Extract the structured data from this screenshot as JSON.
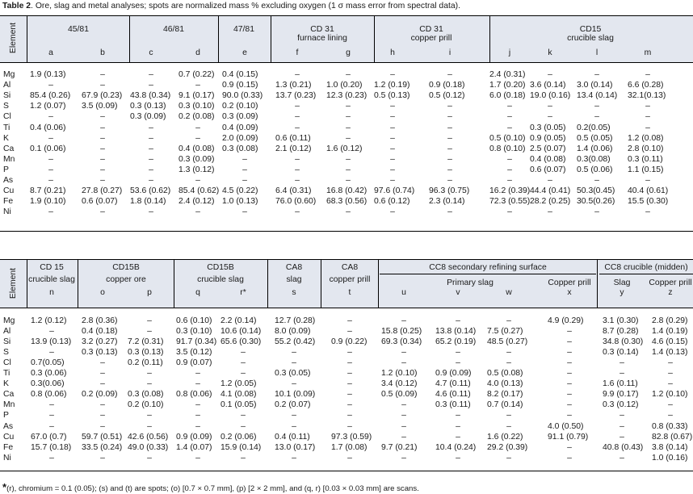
{
  "caption": {
    "label": "Table 2",
    "text": ". Ore, slag and metal analyses; spots are normalized mass % excluding oxygen (1 σ mass error from spectral data)."
  },
  "element_header": "Element",
  "elements": [
    "Mg",
    "Al",
    "Si",
    "S",
    "Cl",
    "Ti",
    "K",
    "Ca",
    "Mn",
    "P",
    "As",
    "Cu",
    "Fe",
    "Ni"
  ],
  "table1": {
    "groups": [
      {
        "top": "",
        "name": "45/81"
      },
      {
        "top": "",
        "name": "46/81"
      },
      {
        "top": "",
        "name": "47/81"
      },
      {
        "top": "CD 31",
        "name": "furnace lining"
      },
      {
        "top": "CD 31",
        "name": "copper prill"
      },
      {
        "top": "CD15",
        "name": "crucible slag"
      }
    ],
    "columns": [
      "a",
      "b",
      "c",
      "d",
      "e",
      "f",
      "g",
      "h",
      "i",
      "j",
      "k",
      "l",
      "m"
    ],
    "rows": [
      [
        "1.9 (0.13)",
        "–",
        "–",
        "0.7 (0.22)",
        "0.4 (0.15)",
        "–",
        "–",
        "–",
        "–",
        "2.4 (0.31)",
        "–",
        "–",
        "–"
      ],
      [
        "–",
        "–",
        "–",
        "–",
        "0.9 (0.15)",
        "1.3 (0.21)",
        "1.0 (0.20)",
        "1.2 (0.19)",
        "0.9 (0.18)",
        "1.7 (0.20)",
        "3.6 (0.14)",
        "3.0 (0.14)",
        "6.6 (0.28)"
      ],
      [
        "85.4 (0.26)",
        "67.9 (0.23)",
        "43.8 (0.34)",
        "9.1 (0.17)",
        "90.0 (0.33)",
        "13.7 (0.23)",
        "12.3 (0.23)",
        "0.5 (0.13)",
        "0.5 (0.12)",
        "6.0 (0.18)",
        "19.0 (0.16)",
        "13.4 (0.14)",
        "32.1(0.13)"
      ],
      [
        "1.2 (0.07)",
        "3.5 (0.09)",
        "0.3 (0.13)",
        "0.3 (0.10)",
        "0.2 (0.10)",
        "–",
        "–",
        "–",
        "–",
        "–",
        "–",
        "–",
        "–"
      ],
      [
        "–",
        "–",
        "0.3 (0.09)",
        "0.2 (0.08)",
        "0.3 (0.09)",
        "–",
        "–",
        "–",
        "–",
        "–",
        "–",
        "–",
        "–"
      ],
      [
        "0.4 (0.06)",
        "–",
        "–",
        "–",
        "0.4 (0.09)",
        "–",
        "–",
        "–",
        "–",
        "–",
        "0.3 (0.05)",
        "0.2(0.05)",
        "–"
      ],
      [
        "–",
        "–",
        "–",
        "–",
        "2.0 (0.09)",
        "0.6 (0.11)",
        "–",
        "–",
        "–",
        "0.5 (0.10)",
        "0.9 (0.05)",
        "0.5 (0.05)",
        "1.2 (0.08)"
      ],
      [
        "0.1 (0.06)",
        "–",
        "–",
        "0.4 (0.08)",
        "0.3 (0.08)",
        "2.1 (0.12)",
        "1.6 (0.12)",
        "–",
        "–",
        "0.8 (0.10)",
        "2.5 (0.07)",
        "1.4 (0.06)",
        "2.8 (0.10)"
      ],
      [
        "–",
        "–",
        "–",
        "0.3 (0.09)",
        "–",
        "–",
        "–",
        "–",
        "–",
        "–",
        "0.4 (0.08)",
        "0.3(0.08)",
        "0.3 (0.11)"
      ],
      [
        "–",
        "–",
        "–",
        "1.3 (0.12)",
        "–",
        "–",
        "–",
        "–",
        "–",
        "–",
        "0.6 (0.07)",
        "0.5 (0.06)",
        "1.1 (0.15)"
      ],
      [
        "–",
        "–",
        "–",
        "–",
        "–",
        "–",
        "–",
        "–",
        "–",
        "–",
        "–",
        "–",
        "–"
      ],
      [
        "8.7 (0.21)",
        "27.8 (0.27)",
        "53.6 (0.62)",
        "85.4 (0.62)",
        "4.5 (0.22)",
        "6.4 (0.31)",
        "16.8 (0.42)",
        "97.6 (0.74)",
        "96.3 (0.75)",
        "16.2 (0.39)",
        "44.4 (0.41)",
        "50.3(0.45)",
        "40.4 (0.61)"
      ],
      [
        "1.9 (0.10)",
        "0.6 (0.07)",
        "1.8 (0.14)",
        "2.4 (0.12)",
        "1.0 (0.13)",
        "76.0 (0.60)",
        "68.3 (0.56)",
        "0.6 (0.12)",
        "2.3 (0.14)",
        "72.3 (0.55)",
        "28.2 (0.25)",
        "30.5(0.26)",
        "15.5 (0.30)"
      ],
      [
        "–",
        "–",
        "–",
        "–",
        "–",
        "–",
        "–",
        "–",
        "–",
        "–",
        "–",
        "–",
        "–"
      ]
    ]
  },
  "table2": {
    "groups": [
      {
        "top": "CD 15",
        "name": "crucible slag"
      },
      {
        "top": "CD15B",
        "name": "copper ore"
      },
      {
        "top": "CD15B",
        "name": "crucible slag"
      },
      {
        "top": "CA8",
        "name": "slag"
      },
      {
        "top": "CA8",
        "name": "copper prill"
      },
      {
        "top": "CC8 secondary refining surface",
        "name": ""
      },
      {
        "top": "CC8 crucible (midden)",
        "name": ""
      }
    ],
    "subgroups": [
      "Primary slag",
      "Copper prill",
      "Slag",
      "Copper prill"
    ],
    "columns": [
      "n",
      "o",
      "p",
      "q",
      "r*",
      "s",
      "t",
      "u",
      "v",
      "w",
      "x",
      "y",
      "z"
    ],
    "rows": [
      [
        "1.2 (0.12)",
        "2.8 (0.36)",
        "–",
        "0.6 (0.10)",
        "2.2 (0.14)",
        "12.7 (0.28)",
        "–",
        "–",
        "–",
        "–",
        "4.9 (0.29)",
        "3.1 (0.30)",
        "2.8 (0.29)"
      ],
      [
        "–",
        "0.4 (0.18)",
        "–",
        "0.3 (0.10)",
        "10.6 (0.14)",
        "8.0 (0.09)",
        "–",
        "15.8 (0.25)",
        "13.8 (0.14)",
        "7.5 (0.27)",
        "–",
        "8.7 (0.28)",
        "1.4 (0.19)"
      ],
      [
        "13.9 (0.13)",
        "3.2 (0.27)",
        "7.2 (0.31)",
        "91.7 (0.34)",
        "65.6 (0.30)",
        "55.2 (0.42)",
        "0.9 (0.22)",
        "69.3 (0.34)",
        "65.2 (0.19)",
        "48.5 (0.27)",
        "–",
        "34.8 (0.30)",
        "4.6 (0.15)"
      ],
      [
        "–",
        "0.3 (0.13)",
        "0.3 (0.13)",
        "3.5 (0.12)",
        "–",
        "–",
        "–",
        "–",
        "–",
        "–",
        "–",
        "0.3 (0.14)",
        "1.4 (0.13)"
      ],
      [
        "0.7(0.05)",
        "–",
        "0.2 (0.11)",
        "0.9 (0.07)",
        "–",
        "–",
        "–",
        "–",
        "–",
        "–",
        "–",
        "–",
        "–"
      ],
      [
        "0.3 (0.06)",
        "–",
        "–",
        "–",
        "–",
        "0.3 (0.05)",
        "–",
        "1.2 (0.10)",
        "0.9 (0.09)",
        "0.5 (0.08)",
        "–",
        "–",
        "–"
      ],
      [
        "0.3(0.06)",
        "–",
        "–",
        "–",
        "1.2 (0.05)",
        "–",
        "–",
        "3.4 (0.12)",
        "4.7 (0.11)",
        "4.0 (0.13)",
        "–",
        "1.6 (0.11)",
        "–"
      ],
      [
        "0.8 (0.06)",
        "0.2 (0.09)",
        "0.3 (0.08)",
        "0.8 (0.06)",
        "4.1 (0.08)",
        "10.1 (0.09)",
        "–",
        "0.5 (0.09)",
        "4.6 (0.11)",
        "8.2 (0.17)",
        "–",
        "9.9 (0.17)",
        "1.2 (0.10)"
      ],
      [
        "–",
        "–",
        "0.2 (0.10)",
        "–",
        "0.1 (0.05)",
        "0.2 (0.07)",
        "–",
        "–",
        "0.3 (0.11)",
        "0.7 (0.14)",
        "–",
        "0.3 (0.12)",
        "–"
      ],
      [
        "–",
        "–",
        "–",
        "–",
        "–",
        "–",
        "–",
        "–",
        "–",
        "–",
        "–",
        "–",
        "–"
      ],
      [
        "–",
        "–",
        "–",
        "–",
        "–",
        "–",
        "–",
        "–",
        "–",
        "–",
        "4.0 (0.50)",
        "–",
        "0.8 (0.33)"
      ],
      [
        "67.0 (0.7)",
        "59.7 (0.51)",
        "42.6 (0.56)",
        "0.9 (0.09)",
        "0.2 (0.06)",
        "0.4 (0.11)",
        "97.3 (0.59)",
        "–",
        "–",
        "1.6 (0.22)",
        "91.1 (0.79)",
        "–",
        "82.8 (0.67)"
      ],
      [
        "15.7 (0.18)",
        "33.5 (0.24)",
        "49.0 (0.33)",
        "1.4 (0.07)",
        "15.9 (0.14)",
        "13.0 (0.17)",
        "1.7 (0.08)",
        "9.7 (0.21)",
        "10.4 (0.24)",
        "29.2 (0.39)",
        "–",
        "40.8 (0.43)",
        "3.8 (0.14)"
      ],
      [
        "–",
        "–",
        "–",
        "–",
        "–",
        "–",
        "–",
        "–",
        "–",
        "–",
        "–",
        "–",
        "1.0 (0.16)"
      ]
    ]
  },
  "footnote": {
    "marker": "*",
    "text": "(r), chromium = 0.1 (0.05); (s) and (t) are spots; (o) [0.7 × 0.7 mm], (p) [2 × 2 mm], and (q, r) [0.03 × 0.03 mm] are scans."
  }
}
